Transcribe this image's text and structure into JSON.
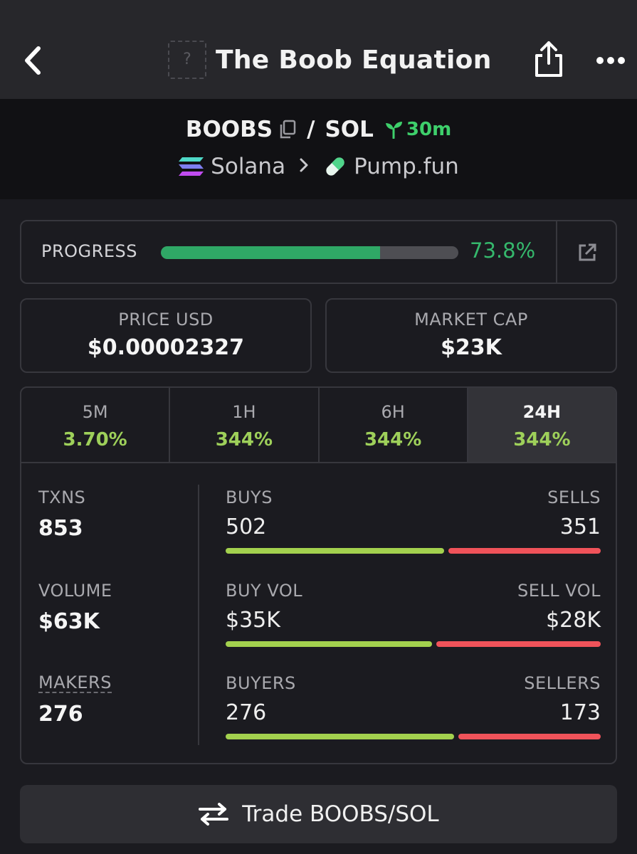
{
  "header": {
    "title": "The Boob Equation",
    "logo_placeholder": "?",
    "icons": {
      "back": "chevron-left-icon",
      "share": "share-icon",
      "more": "more-horizontal-icon"
    }
  },
  "pair": {
    "base": "BOOBS",
    "separator": "/",
    "quote": "SOL",
    "age": "30m",
    "chain": "Solana",
    "dex": "Pump.fun",
    "icons": {
      "copy": "copy-icon",
      "age": "sprout-icon",
      "chain": "solana-icon",
      "dex": "pill-icon",
      "chevron": "chevron-right-icon"
    }
  },
  "progress": {
    "label": "PROGRESS",
    "value_text": "73.8%",
    "fraction": 0.738,
    "icon": "external-link-icon"
  },
  "price": {
    "label": "PRICE USD",
    "value": "$0.00002327"
  },
  "market_cap": {
    "label": "MARKET CAP",
    "value": "$23K"
  },
  "timeframes": [
    {
      "label": "5M",
      "change": "3.70%",
      "active": false
    },
    {
      "label": "1H",
      "change": "344%",
      "active": false
    },
    {
      "label": "6H",
      "change": "344%",
      "active": false
    },
    {
      "label": "24H",
      "change": "344%",
      "active": true
    }
  ],
  "metrics": {
    "txns": {
      "label": "TXNS",
      "value": "853"
    },
    "volume": {
      "label": "VOLUME",
      "value": "$63K"
    },
    "makers": {
      "label": "MAKERS",
      "value": "276"
    }
  },
  "splits": {
    "txns": {
      "left_label": "BUYS",
      "right_label": "SELLS",
      "left_value": "502",
      "right_value": "351",
      "left_share": 0.588
    },
    "volume": {
      "left_label": "BUY VOL",
      "right_label": "SELL VOL",
      "left_value": "$35K",
      "right_value": "$28K",
      "left_share": 0.556
    },
    "makers": {
      "left_label": "BUYERS",
      "right_label": "SELLERS",
      "left_value": "276",
      "right_value": "173",
      "left_share": 0.615
    }
  },
  "colors": {
    "accent_green": "#35b86c",
    "buy": "#a3d14e",
    "sell": "#f0535a",
    "change_positive": "#9ed05a"
  },
  "trade_button": {
    "label": "Trade BOOBS/SOL",
    "icon": "swap-arrows-icon"
  }
}
